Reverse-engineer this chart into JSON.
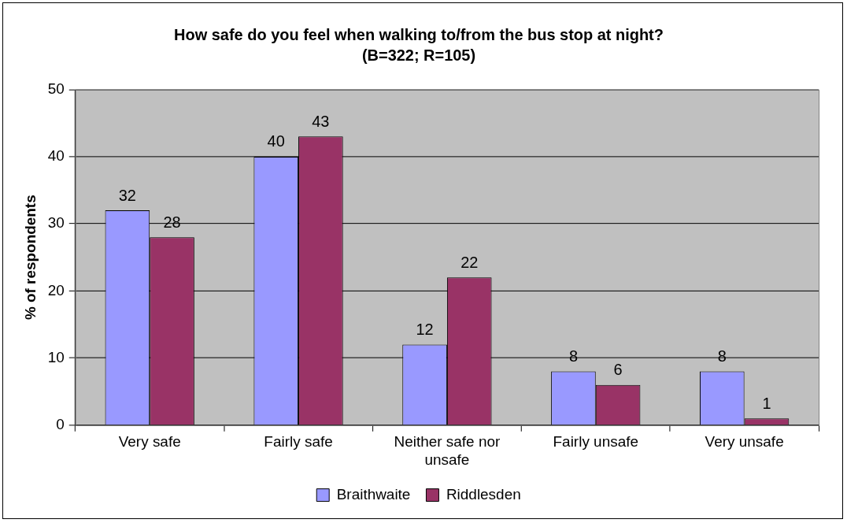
{
  "chart_data": {
    "type": "bar",
    "title": "How safe do you feel when walking to/from the bus stop at night?",
    "subtitle": "(B=322; R=105)",
    "ylabel": "% of respondents",
    "categories": [
      "Very safe",
      "Fairly safe",
      "Neither safe nor unsafe",
      "Fairly unsafe",
      "Very unsafe"
    ],
    "series": [
      {
        "name": "Braithwaite",
        "color": "#9999ff",
        "values": [
          32,
          40,
          12,
          8,
          8
        ]
      },
      {
        "name": "Riddlesden",
        "color": "#993366",
        "values": [
          28,
          43,
          22,
          6,
          1
        ]
      }
    ],
    "ylim": [
      0,
      50
    ],
    "yticks": [
      0,
      10,
      20,
      30,
      40,
      50
    ],
    "grid": "y",
    "legend": "bottom",
    "data_labels": true
  }
}
